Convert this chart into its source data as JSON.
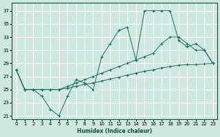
{
  "bg_color": "#cce8e0",
  "line_color": "#1a6b5a",
  "grid_color": "#ffffff",
  "xlim": [
    -0.5,
    23.5
  ],
  "ylim": [
    20.5,
    38.2
  ],
  "xticks": [
    0,
    1,
    2,
    3,
    4,
    5,
    6,
    7,
    8,
    9,
    10,
    11,
    12,
    13,
    14,
    15,
    16,
    17,
    18,
    19,
    20,
    21,
    22,
    23
  ],
  "yticks": [
    21,
    23,
    25,
    27,
    29,
    31,
    33,
    35,
    37
  ],
  "xlabel": "Humidex (Indice chaleur)",
  "line1_x": [
    0,
    1,
    2,
    3,
    4,
    5,
    6,
    7,
    8,
    9,
    10,
    11,
    12,
    13,
    14,
    15,
    16,
    17,
    18,
    19,
    20,
    21,
    22,
    23
  ],
  "line1_y": [
    28,
    25,
    25,
    24,
    22,
    21,
    24,
    26.5,
    26,
    25,
    30,
    32,
    34,
    34.5,
    29.5,
    37,
    37,
    37,
    37,
    32.5,
    31.5,
    32,
    31,
    29
  ],
  "line2_x": [
    0,
    1,
    2,
    3,
    4,
    5,
    6,
    7,
    8,
    9,
    10,
    11,
    12,
    13,
    14,
    15,
    16,
    17,
    18,
    19,
    20,
    21,
    22,
    23
  ],
  "line2_y": [
    28,
    25,
    25,
    25,
    25,
    25,
    25.5,
    26,
    26.5,
    27,
    27.5,
    28,
    28.5,
    29,
    29.5,
    30,
    30.5,
    32,
    33,
    33,
    32,
    31,
    31,
    29
  ],
  "line3_x": [
    0,
    1,
    2,
    3,
    4,
    5,
    6,
    7,
    8,
    9,
    10,
    11,
    12,
    13,
    14,
    15,
    16,
    17,
    18,
    19,
    20,
    21,
    22,
    23
  ],
  "line3_y": [
    28,
    25,
    25,
    25,
    25,
    25,
    25.2,
    25.5,
    25.8,
    26,
    26.3,
    26.6,
    26.9,
    27.2,
    27.5,
    27.8,
    28.0,
    28.3,
    28.5,
    28.7,
    28.8,
    28.8,
    28.9,
    29
  ]
}
